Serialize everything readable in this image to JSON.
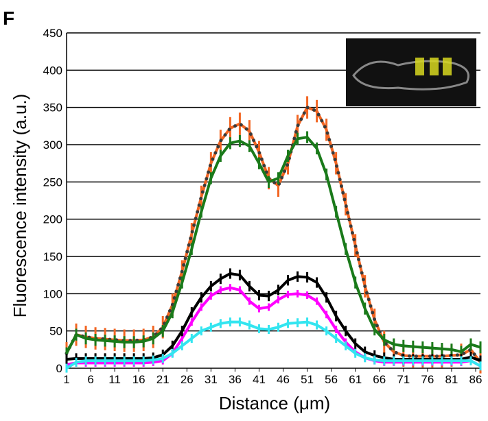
{
  "chart_data": {
    "type": "line",
    "panel_label": "F",
    "x_label": "Distance (μm)",
    "y_label": "Fluorescence intensity (a.u.)",
    "x": [
      1,
      3,
      5,
      7,
      9,
      11,
      13,
      15,
      17,
      19,
      21,
      23,
      25,
      27,
      29,
      31,
      33,
      35,
      37,
      39,
      41,
      43,
      45,
      47,
      49,
      51,
      53,
      55,
      57,
      59,
      61,
      63,
      65,
      67,
      69,
      71,
      73,
      75,
      77,
      79,
      81,
      83,
      85,
      87
    ],
    "xlim": [
      1,
      87
    ],
    "xticks": [
      1,
      6,
      11,
      16,
      21,
      26,
      31,
      36,
      41,
      46,
      51,
      56,
      61,
      66,
      71,
      76,
      81,
      86
    ],
    "ylim": [
      0,
      450
    ],
    "yticks": [
      0,
      50,
      100,
      150,
      200,
      250,
      300,
      350,
      400,
      450
    ],
    "grid": true,
    "series": [
      {
        "color": "#f26522",
        "dot_color": "#3a3a3a",
        "error": 15,
        "values": [
          20,
          45,
          42,
          40,
          39,
          38,
          37,
          37,
          38,
          42,
          55,
          85,
          130,
          180,
          230,
          275,
          305,
          322,
          328,
          318,
          290,
          255,
          245,
          275,
          325,
          350,
          345,
          320,
          275,
          220,
          165,
          110,
          65,
          35,
          22,
          17,
          16,
          16,
          16,
          16,
          17,
          18,
          25,
          8
        ]
      },
      {
        "color": "#1a7a1a",
        "error": 8,
        "values": [
          20,
          45,
          40,
          38,
          37,
          36,
          35,
          35,
          36,
          40,
          50,
          75,
          115,
          160,
          210,
          255,
          285,
          302,
          305,
          298,
          275,
          250,
          255,
          285,
          308,
          310,
          295,
          260,
          210,
          160,
          115,
          80,
          52,
          38,
          32,
          30,
          29,
          28,
          27,
          26,
          25,
          22,
          32,
          28
        ]
      },
      {
        "color": "#ff00ff",
        "error": 5,
        "values": [
          5,
          7,
          7,
          7,
          7,
          7,
          7,
          7,
          7,
          8,
          10,
          20,
          40,
          62,
          82,
          97,
          105,
          108,
          105,
          90,
          80,
          82,
          92,
          99,
          100,
          98,
          90,
          72,
          52,
          35,
          22,
          14,
          10,
          8,
          8,
          8,
          8,
          8,
          8,
          8,
          8,
          8,
          10,
          3
        ]
      },
      {
        "color": "#000000",
        "error": 7,
        "values": [
          12,
          13,
          13,
          13,
          13,
          13,
          13,
          13,
          13,
          14,
          18,
          30,
          50,
          75,
          95,
          110,
          120,
          127,
          125,
          110,
          98,
          97,
          105,
          118,
          123,
          122,
          115,
          95,
          70,
          50,
          33,
          22,
          17,
          14,
          12,
          12,
          12,
          12,
          12,
          12,
          12,
          12,
          15,
          10
        ]
      },
      {
        "color": "#33e5f0",
        "error": 6,
        "values": [
          0,
          8,
          10,
          10,
          10,
          10,
          10,
          10,
          10,
          11,
          13,
          20,
          30,
          40,
          50,
          55,
          60,
          62,
          62,
          58,
          53,
          52,
          55,
          60,
          61,
          62,
          58,
          50,
          40,
          30,
          20,
          14,
          11,
          10,
          10,
          10,
          10,
          10,
          10,
          10,
          10,
          10,
          10,
          3
        ]
      }
    ]
  }
}
